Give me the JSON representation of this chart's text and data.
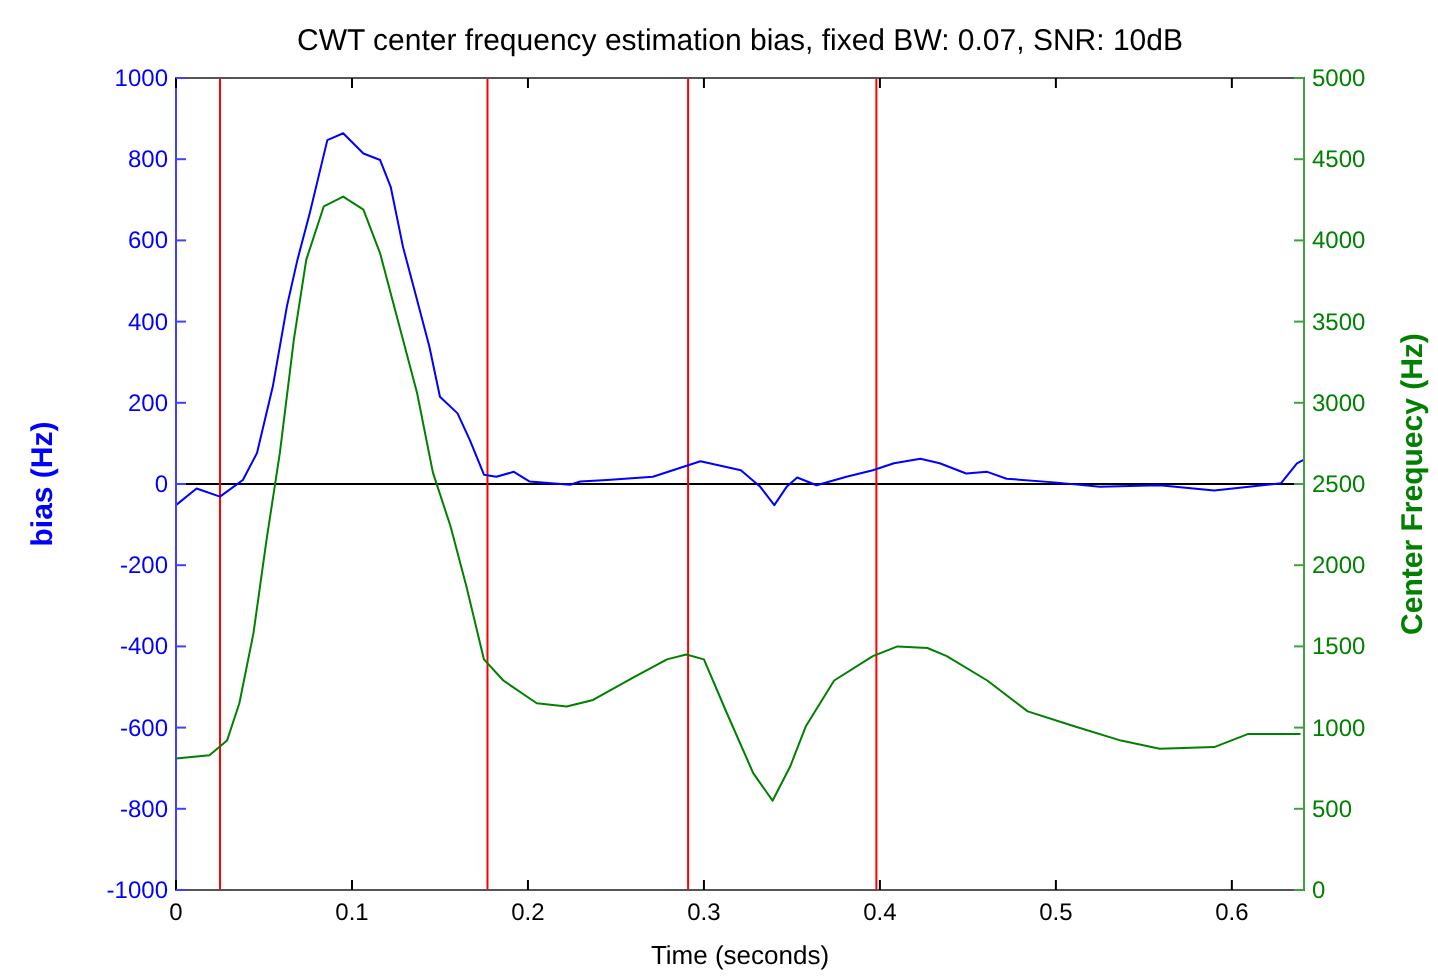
{
  "chart_data": {
    "type": "line",
    "title": "CWT center frequency estimation bias, fixed BW: 0.07, SNR: 10dB",
    "xlabel": "Time (seconds)",
    "ylabel": "bias (Hz)",
    "y2label": "Center Frequecy (Hz)",
    "xlim": [
      0,
      0.641
    ],
    "xticks": [
      0,
      0.1,
      0.2,
      0.3,
      0.4,
      0.5,
      0.6
    ],
    "ylim": [
      -1000,
      1000
    ],
    "yticks": [
      -1000,
      -800,
      -600,
      -400,
      -200,
      0,
      200,
      400,
      600,
      800,
      1000
    ],
    "y2lim": [
      0,
      5000
    ],
    "y2ticks": [
      0,
      500,
      1000,
      1500,
      2000,
      2500,
      3000,
      3500,
      4000,
      4500,
      5000
    ],
    "grid": false,
    "line_style": "solid",
    "marker": "none",
    "ref_lines": [
      {
        "axis": "y",
        "value": 0,
        "color": "#000000"
      },
      {
        "axis": "x",
        "value": 0.025,
        "color": "#ff0000"
      },
      {
        "axis": "x",
        "value": 0.177,
        "color": "#ff0000"
      },
      {
        "axis": "x",
        "value": 0.291,
        "color": "#ff0000"
      },
      {
        "axis": "x",
        "value": 0.398,
        "color": "#ff0000"
      }
    ],
    "series": [
      {
        "color": "#0000ff",
        "x": [
          0,
          0.0117,
          0.025,
          0.038,
          0.046,
          0.055,
          0.063,
          0.069,
          0.076,
          0.086,
          0.095,
          0.1065,
          0.116,
          0.122,
          0.129,
          0.137,
          0.144,
          0.15,
          0.16,
          0.167,
          0.175,
          0.182,
          0.192,
          0.201,
          0.224,
          0.2297,
          0.245,
          0.271,
          0.298,
          0.321,
          0.332,
          0.34,
          0.347,
          0.353,
          0.364,
          0.381,
          0.396,
          0.408,
          0.423,
          0.434,
          0.449,
          0.461,
          0.472,
          0.499,
          0.525,
          0.559,
          0.59,
          0.628,
          0.637,
          0.641
        ],
        "values": [
          -52,
          -11,
          -31,
          10,
          76,
          240,
          437,
          552,
          667,
          847,
          864,
          814,
          798,
          732,
          584,
          453,
          338,
          215,
          174,
          108,
          23,
          18,
          30,
          6,
          -2,
          6,
          10,
          18,
          56,
          34,
          -7,
          -52,
          -7,
          16,
          -3,
          18,
          34,
          51,
          62,
          51,
          26,
          30,
          13,
          4,
          -7,
          -3,
          -16,
          2,
          51,
          60
        ]
      },
      {
        "color": "#008000",
        "axis": "y2",
        "x": [
          0,
          0.019,
          0.029,
          0.036,
          0.044,
          0.0515,
          0.059,
          0.067,
          0.074,
          0.084,
          0.095,
          0.1065,
          0.116,
          0.127,
          0.137,
          0.146,
          0.156,
          0.165,
          0.175,
          0.186,
          0.205,
          0.222,
          0.237,
          0.26,
          0.279,
          0.29,
          0.3,
          0.313,
          0.328,
          0.339,
          0.349,
          0.358,
          0.374,
          0.396,
          0.41,
          0.427,
          0.438,
          0.461,
          0.484,
          0.51,
          0.537,
          0.559,
          0.59,
          0.609,
          0.639
        ],
        "values": [
          810,
          830,
          920,
          1150,
          1580,
          2160,
          2690,
          3390,
          3880,
          4210,
          4270,
          4190,
          3920,
          3470,
          3060,
          2570,
          2240,
          1870,
          1420,
          1290,
          1150,
          1130,
          1170,
          1310,
          1420,
          1450,
          1420,
          1090,
          720,
          550,
          760,
          1010,
          1290,
          1440,
          1500,
          1490,
          1440,
          1290,
          1100,
          1010,
          920,
          870,
          880,
          960,
          960
        ]
      }
    ]
  }
}
